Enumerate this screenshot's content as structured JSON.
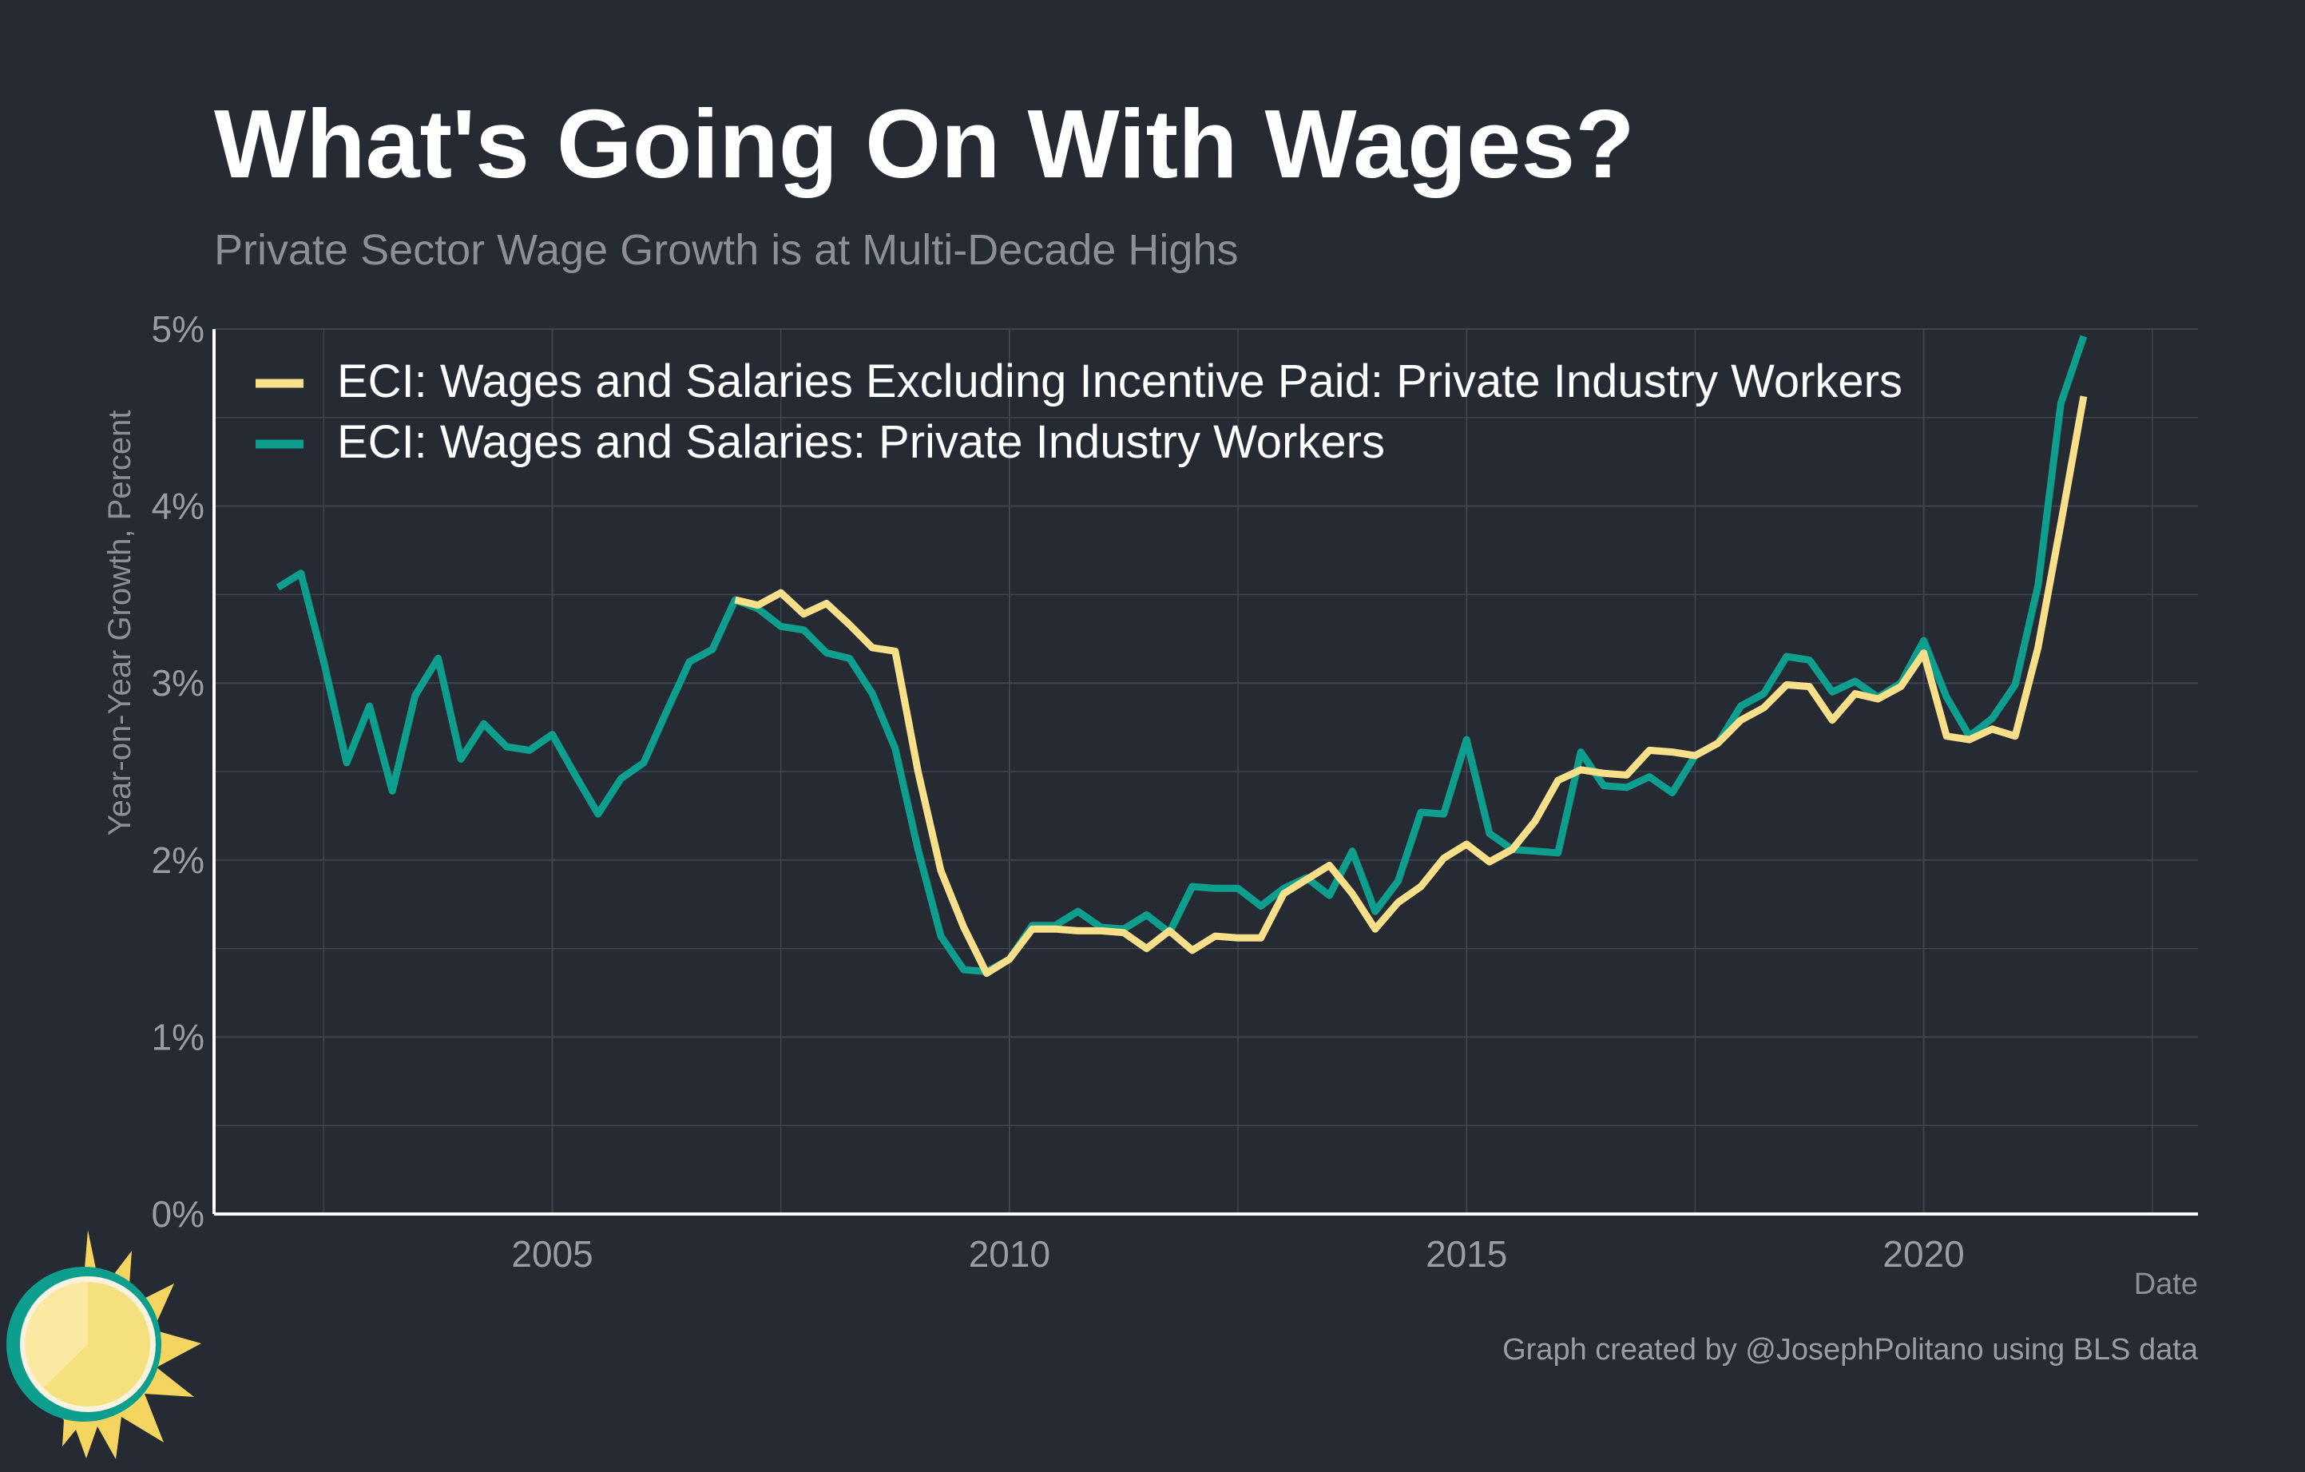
{
  "chart_data": {
    "type": "line",
    "title": "What's Going On With Wages?",
    "subtitle": "Private Sector Wage Growth is at Multi-Decade Highs",
    "xlabel": "Date",
    "ylabel": "Year-on-Year Growth, Percent",
    "caption": "Graph created by @JosephPolitano using BLS data",
    "xlim": [
      2001.3,
      2023.0
    ],
    "ylim": [
      0,
      5
    ],
    "x_ticks": [
      2005,
      2010,
      2015,
      2020
    ],
    "x_tick_labels": [
      "2005",
      "2010",
      "2015",
      "2020"
    ],
    "y_ticks": [
      0,
      1,
      2,
      3,
      4,
      5
    ],
    "y_tick_labels": [
      "0%",
      "1%",
      "2%",
      "3%",
      "4%",
      "5%"
    ],
    "grid": true,
    "legend_position": "top-left",
    "series": [
      {
        "name": "ECI: Wages and Salaries Excluding Incentive Paid: Private Industry Workers",
        "color": "#f8e08a",
        "x": [
          2007.0,
          2007.25,
          2007.5,
          2007.75,
          2008.0,
          2008.25,
          2008.5,
          2008.75,
          2009.0,
          2009.25,
          2009.5,
          2009.75,
          2010.0,
          2010.25,
          2010.5,
          2010.75,
          2011.0,
          2011.25,
          2011.5,
          2011.75,
          2012.0,
          2012.25,
          2012.5,
          2012.75,
          2013.0,
          2013.25,
          2013.5,
          2013.75,
          2014.0,
          2014.25,
          2014.5,
          2014.75,
          2015.0,
          2015.25,
          2015.5,
          2015.75,
          2016.0,
          2016.25,
          2016.5,
          2016.75,
          2017.0,
          2017.25,
          2017.5,
          2017.75,
          2018.0,
          2018.25,
          2018.5,
          2018.75,
          2019.0,
          2019.25,
          2019.5,
          2019.75,
          2020.0,
          2020.25,
          2020.5,
          2020.75,
          2021.0,
          2021.25,
          2021.5,
          2021.75
        ],
        "y": [
          3.47,
          3.44,
          3.51,
          3.39,
          3.45,
          3.33,
          3.2,
          3.18,
          2.5,
          1.94,
          1.62,
          1.36,
          1.44,
          1.61,
          1.61,
          1.6,
          1.6,
          1.59,
          1.5,
          1.6,
          1.49,
          1.57,
          1.56,
          1.56,
          1.81,
          1.89,
          1.97,
          1.81,
          1.61,
          1.76,
          1.85,
          2.01,
          2.09,
          1.99,
          2.06,
          2.22,
          2.45,
          2.51,
          2.49,
          2.48,
          2.62,
          2.61,
          2.59,
          2.66,
          2.79,
          2.86,
          2.99,
          2.98,
          2.79,
          2.94,
          2.91,
          2.98,
          3.17,
          2.7,
          2.68,
          2.74,
          2.7,
          3.2,
          3.9,
          4.62
        ]
      },
      {
        "name": "ECI: Wages and Salaries: Private Industry Workers",
        "color": "#0e9e8e",
        "x": [
          2002.0,
          2002.25,
          2002.5,
          2002.75,
          2003.0,
          2003.25,
          2003.5,
          2003.75,
          2004.0,
          2004.25,
          2004.5,
          2004.75,
          2005.0,
          2005.25,
          2005.5,
          2005.75,
          2006.0,
          2006.25,
          2006.5,
          2006.75,
          2007.0,
          2007.25,
          2007.5,
          2007.75,
          2008.0,
          2008.25,
          2008.5,
          2008.75,
          2009.0,
          2009.25,
          2009.5,
          2009.75,
          2010.0,
          2010.25,
          2010.5,
          2010.75,
          2011.0,
          2011.25,
          2011.5,
          2011.75,
          2012.0,
          2012.25,
          2012.5,
          2012.75,
          2013.0,
          2013.25,
          2013.5,
          2013.75,
          2014.0,
          2014.25,
          2014.5,
          2014.75,
          2015.0,
          2015.25,
          2015.5,
          2015.75,
          2016.0,
          2016.25,
          2016.5,
          2016.75,
          2017.0,
          2017.25,
          2017.5,
          2017.75,
          2018.0,
          2018.25,
          2018.5,
          2018.75,
          2019.0,
          2019.25,
          2019.5,
          2019.75,
          2020.0,
          2020.25,
          2020.5,
          2020.75,
          2021.0,
          2021.25,
          2021.5,
          2021.75
        ],
        "y": [
          3.54,
          3.62,
          3.12,
          2.55,
          2.87,
          2.39,
          2.93,
          3.14,
          2.57,
          2.77,
          2.64,
          2.62,
          2.71,
          2.48,
          2.26,
          2.46,
          2.55,
          2.84,
          3.12,
          3.19,
          3.47,
          3.42,
          3.32,
          3.3,
          3.17,
          3.14,
          2.94,
          2.63,
          2.06,
          1.57,
          1.38,
          1.37,
          1.44,
          1.63,
          1.63,
          1.71,
          1.62,
          1.61,
          1.69,
          1.59,
          1.85,
          1.84,
          1.84,
          1.74,
          1.84,
          1.9,
          1.8,
          2.05,
          1.71,
          1.88,
          2.27,
          2.26,
          2.68,
          2.15,
          2.06,
          2.05,
          2.04,
          2.61,
          2.42,
          2.41,
          2.47,
          2.38,
          2.59,
          2.66,
          2.87,
          2.94,
          3.15,
          3.13,
          2.95,
          3.01,
          2.92,
          3.0,
          3.24,
          2.92,
          2.7,
          2.8,
          2.99,
          3.55,
          4.58,
          4.96
        ]
      }
    ]
  }
}
